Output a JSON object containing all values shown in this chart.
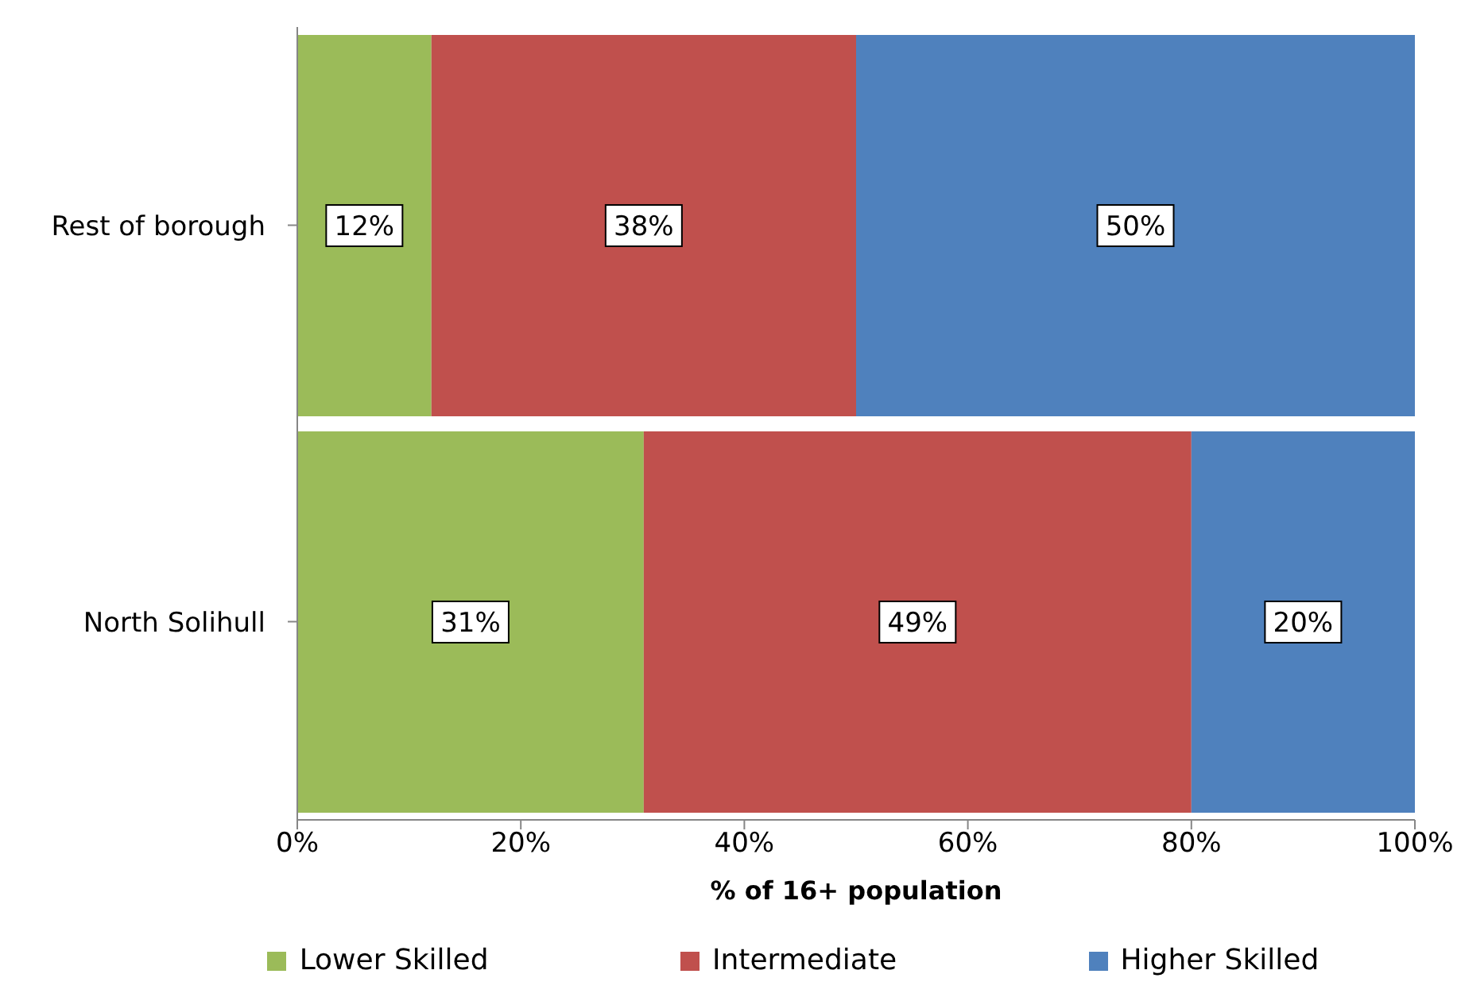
{
  "chart_data": {
    "type": "bar",
    "orientation": "horizontal",
    "stacked": true,
    "categories": [
      "Rest of borough",
      "North Solihull"
    ],
    "series": [
      {
        "name": "Lower Skilled",
        "color": "#9bbb59",
        "values": [
          12,
          31
        ],
        "value_labels": [
          "12%",
          "31%"
        ]
      },
      {
        "name": "Intermediate",
        "color": "#c0504d",
        "values": [
          38,
          49
        ],
        "value_labels": [
          "38%",
          "49%"
        ]
      },
      {
        "name": "Higher Skilled",
        "color": "#4f81bd",
        "values": [
          50,
          20
        ],
        "value_labels": [
          "50%",
          "20%"
        ]
      }
    ],
    "xlabel": "% of 16+ population",
    "xlim": [
      0,
      100
    ],
    "xticks": [
      {
        "value": 0,
        "label": "0%"
      },
      {
        "value": 20,
        "label": "20%"
      },
      {
        "value": 40,
        "label": "40%"
      },
      {
        "value": 60,
        "label": "60%"
      },
      {
        "value": 80,
        "label": "80%"
      },
      {
        "value": 100,
        "label": "100%"
      }
    ],
    "grid": false,
    "legend": "bottom"
  }
}
